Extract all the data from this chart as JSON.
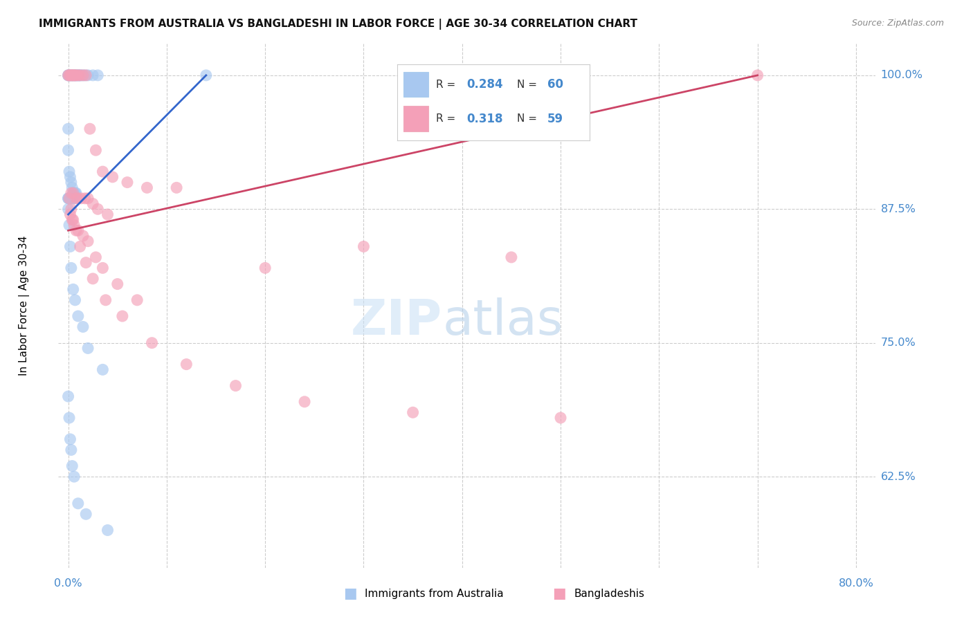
{
  "title": "IMMIGRANTS FROM AUSTRALIA VS BANGLADESHI IN LABOR FORCE | AGE 30-34 CORRELATION CHART",
  "source": "Source: ZipAtlas.com",
  "ylabel": "In Labor Force | Age 30-34",
  "xlim_data": [
    -1,
    82
  ],
  "ylim_data": [
    54,
    103
  ],
  "ytick_vals": [
    62.5,
    75.0,
    87.5,
    100.0
  ],
  "ytick_labels": [
    "62.5%",
    "75.0%",
    "87.5%",
    "100.0%"
  ],
  "xtick_label_left": "0.0%",
  "xtick_label_right": "80.0%",
  "R_blue": 0.284,
  "N_blue": 60,
  "R_pink": 0.318,
  "N_pink": 59,
  "blue_color": "#a8c8f0",
  "pink_color": "#f4a0b8",
  "blue_line_color": "#3366cc",
  "pink_line_color": "#cc4466",
  "axis_label_color": "#4488cc",
  "title_color": "#111111",
  "legend_labels": [
    "Immigrants from Australia",
    "Bangladeshis"
  ],
  "blue_x": [
    0.0,
    0.0,
    0.1,
    0.2,
    0.3,
    0.4,
    0.5,
    0.6,
    0.7,
    0.8,
    0.9,
    1.0,
    1.1,
    1.2,
    1.3,
    1.5,
    1.7,
    2.0,
    2.5,
    3.0,
    0.0,
    0.0,
    0.1,
    0.2,
    0.3,
    0.4,
    0.5,
    0.6,
    0.7,
    0.8,
    0.0,
    0.0,
    0.1,
    0.1,
    0.2,
    0.3,
    0.3,
    0.4,
    0.5,
    0.6,
    0.0,
    0.1,
    0.2,
    0.3,
    0.5,
    0.7,
    1.0,
    1.5,
    2.0,
    3.5,
    0.0,
    0.1,
    0.2,
    0.4,
    0.6,
    1.0,
    1.8,
    4.0,
    0.3,
    14.0
  ],
  "blue_y": [
    100.0,
    100.0,
    100.0,
    100.0,
    100.0,
    100.0,
    100.0,
    100.0,
    100.0,
    100.0,
    100.0,
    100.0,
    100.0,
    100.0,
    100.0,
    100.0,
    100.0,
    100.0,
    100.0,
    100.0,
    95.0,
    93.0,
    91.0,
    90.5,
    90.0,
    89.5,
    89.0,
    89.0,
    89.0,
    89.0,
    88.5,
    88.5,
    88.5,
    88.5,
    88.5,
    88.5,
    88.5,
    88.5,
    88.5,
    88.5,
    87.5,
    86.0,
    84.0,
    82.0,
    80.0,
    79.0,
    77.5,
    76.5,
    74.5,
    72.5,
    70.0,
    68.0,
    66.0,
    63.5,
    62.5,
    60.0,
    59.0,
    57.5,
    65.0,
    100.0
  ],
  "pink_x": [
    0.0,
    0.1,
    0.2,
    0.3,
    0.4,
    0.5,
    0.6,
    0.7,
    0.8,
    1.0,
    1.2,
    1.5,
    1.8,
    2.2,
    2.8,
    3.5,
    4.5,
    6.0,
    8.0,
    11.0,
    0.3,
    0.5,
    0.8,
    1.0,
    1.3,
    1.7,
    2.0,
    2.5,
    3.0,
    4.0,
    0.2,
    0.4,
    0.6,
    1.0,
    1.5,
    2.0,
    2.8,
    3.5,
    5.0,
    7.0,
    0.1,
    0.3,
    0.5,
    0.8,
    1.2,
    1.8,
    2.5,
    3.8,
    5.5,
    8.5,
    12.0,
    17.0,
    24.0,
    35.0,
    50.0,
    30.0,
    45.0,
    70.0,
    20.0
  ],
  "pink_y": [
    100.0,
    100.0,
    100.0,
    100.0,
    100.0,
    100.0,
    100.0,
    100.0,
    100.0,
    100.0,
    100.0,
    100.0,
    100.0,
    95.0,
    93.0,
    91.0,
    90.5,
    90.0,
    89.5,
    89.5,
    89.0,
    89.0,
    88.5,
    88.5,
    88.5,
    88.5,
    88.5,
    88.0,
    87.5,
    87.0,
    87.0,
    86.5,
    86.0,
    85.5,
    85.0,
    84.5,
    83.0,
    82.0,
    80.5,
    79.0,
    88.5,
    87.5,
    86.5,
    85.5,
    84.0,
    82.5,
    81.0,
    79.0,
    77.5,
    75.0,
    73.0,
    71.0,
    69.5,
    68.5,
    68.0,
    84.0,
    83.0,
    100.0,
    82.0
  ]
}
